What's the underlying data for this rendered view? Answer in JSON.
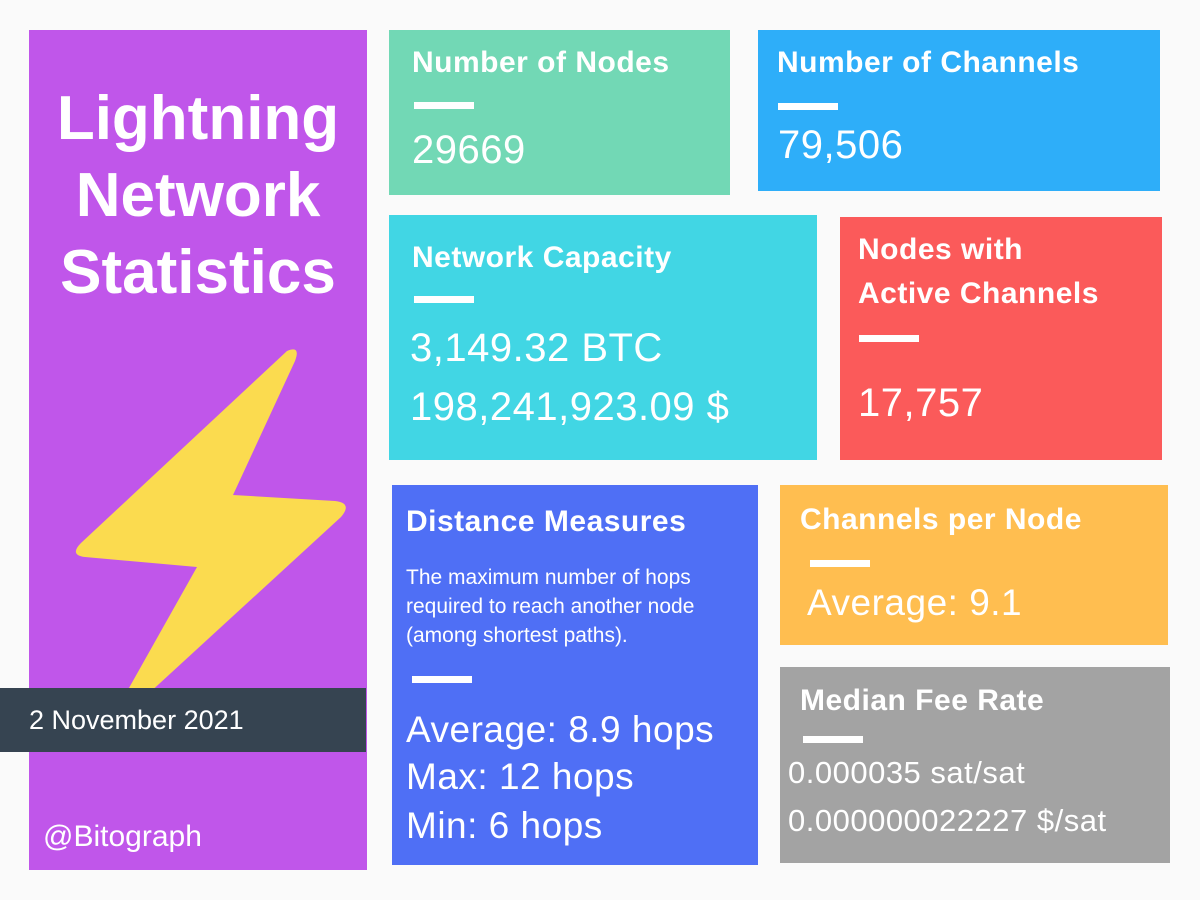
{
  "sidebar": {
    "title_lines": [
      "Lightning",
      "Network",
      "Statistics"
    ],
    "icon": "lightning-bolt-icon",
    "date": "2 November 2021",
    "handle": "@Bitograph"
  },
  "cards": {
    "nodes": {
      "title": "Number of Nodes",
      "value": "29669"
    },
    "channels": {
      "title": "Number of Channels",
      "value": "79,506"
    },
    "capacity": {
      "title": "Network Capacity",
      "value_btc": "3,149.32 BTC",
      "value_usd": "198,241,923.09 $"
    },
    "active": {
      "title_line1": "Nodes with",
      "title_line2": "Active Channels",
      "value": "17,757"
    },
    "distance": {
      "title": "Distance Measures",
      "description": "The maximum number of hops required to reach another node (among shortest paths).",
      "average": "Average: 8.9 hops",
      "max": "Max: 12 hops",
      "min": "Min: 6 hops"
    },
    "channels_per_node": {
      "title": "Channels per Node",
      "average": "Average: 9.1"
    },
    "median_fee": {
      "title": "Median Fee Rate",
      "sat": "0.000035 sat/sat",
      "usd": "0.000000022227 $/sat"
    }
  },
  "colors": {
    "sidebar": "#c056ea",
    "nodes": "#72d8b5",
    "channels": "#2eaef9",
    "capacity": "#41d6e4",
    "active": "#fb5a5a",
    "distance": "#4f6ff5",
    "channels_per_node": "#ffbe50",
    "median_fee": "#a3a3a3",
    "date_banner": "#364451",
    "bolt": "#fbdb4f"
  }
}
